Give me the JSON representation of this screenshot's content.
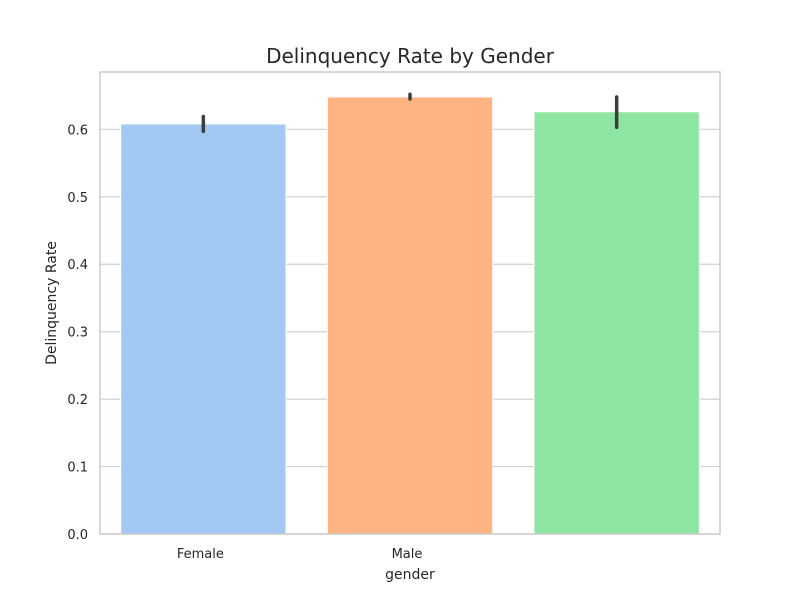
{
  "chart_data": {
    "type": "bar",
    "title": "Delinquency Rate by Gender",
    "xlabel": "gender",
    "ylabel": "Delinquency Rate",
    "categories": [
      "Female",
      "Male",
      ""
    ],
    "values": [
      0.608,
      0.648,
      0.626
    ],
    "errors": [
      [
        0.597,
        0.619
      ],
      [
        0.645,
        0.652
      ],
      [
        0.603,
        0.648
      ]
    ],
    "colors": [
      "#a1c9f4",
      "#ffb482",
      "#8de5a1"
    ],
    "ylim": [
      0,
      0.685
    ],
    "yticks": [
      0.0,
      0.1,
      0.2,
      0.3,
      0.4,
      0.5,
      0.6
    ],
    "ytick_labels": [
      "0.0",
      "0.1",
      "0.2",
      "0.3",
      "0.4",
      "0.5",
      "0.6"
    ],
    "grid": "horizontal",
    "legend": "none"
  }
}
